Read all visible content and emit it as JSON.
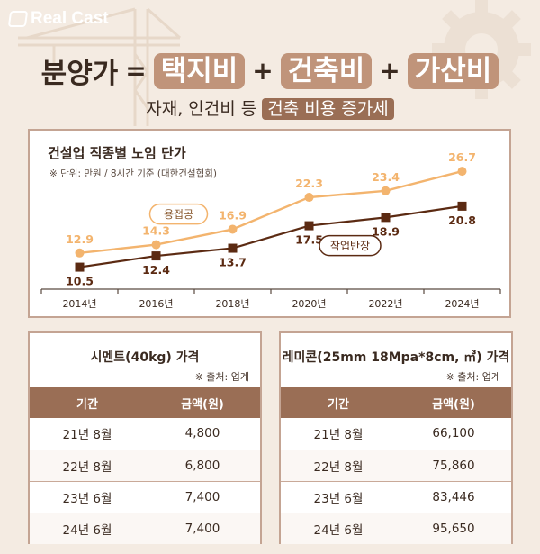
{
  "brand": {
    "name": "Real Cast"
  },
  "headline": {
    "lead": "분양가",
    "equals": "=",
    "plus": "+",
    "terms": [
      "택지비",
      "건축비",
      "가산비"
    ]
  },
  "subheadline": {
    "text": "자재, 인건비 등",
    "highlight": "건축 비용 증가세"
  },
  "colors": {
    "background": "#f4ebe2",
    "accent": "#9a6e55",
    "pill": "#c0947a",
    "series_light": "#f3b46e",
    "series_dark": "#5b2a12"
  },
  "chart_data": {
    "type": "line",
    "title": "건설업 직종별 노임 단가",
    "unit_note": "※ 단위: 만원 / 8시간 기준 (대한건설협회)",
    "categories": [
      "2014년",
      "2016년",
      "2018년",
      "2020년",
      "2022년",
      "2024년"
    ],
    "series": [
      {
        "name": "용접공",
        "color": "#f3b46e",
        "marker": "circle",
        "values": [
          12.9,
          14.3,
          16.9,
          22.3,
          23.4,
          26.7
        ]
      },
      {
        "name": "작업반장",
        "color": "#5b2a12",
        "marker": "square",
        "values": [
          10.5,
          12.4,
          13.7,
          17.5,
          18.9,
          20.8
        ]
      }
    ],
    "ylim": [
      8,
      29
    ],
    "grid": false
  },
  "cement": {
    "title": "시멘트(40kg) 가격",
    "source": "※ 출처: 업계",
    "headers": [
      "기간",
      "금액(원)"
    ],
    "rows": [
      [
        "21년 8월",
        "4,800"
      ],
      [
        "22년 8월",
        "6,800"
      ],
      [
        "23년 6월",
        "7,400"
      ],
      [
        "24년 6월",
        "7,400"
      ]
    ]
  },
  "remicon": {
    "title": "레미콘(25mm 18Mpa*8cm, ㎥) 가격",
    "source": "※ 출처: 업계",
    "headers": [
      "기간",
      "금액(원)"
    ],
    "rows": [
      [
        "21년 8월",
        "66,100"
      ],
      [
        "22년 8월",
        "75,860"
      ],
      [
        "23년 6월",
        "83,446"
      ],
      [
        "24년 6월",
        "95,650"
      ]
    ]
  }
}
